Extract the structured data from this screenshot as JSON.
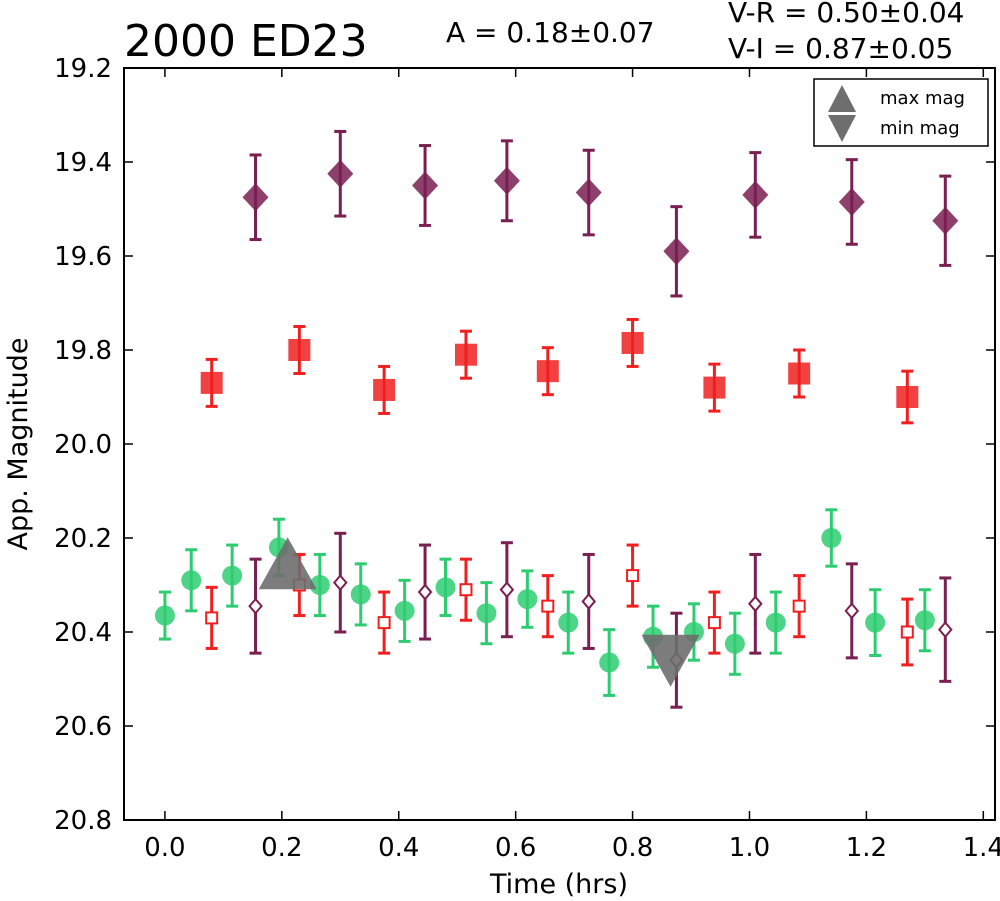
{
  "chart_data": {
    "type": "scatter",
    "title": "2000 ED23",
    "amplitude_label": "A  = 0.18±0.07",
    "color_labels": [
      "V-R = 0.50±0.04",
      "V-I  = 0.87±0.05"
    ],
    "xlabel": "Time (hrs)",
    "ylabel": "App. Magnitude",
    "xlim": [
      -0.07,
      1.42
    ],
    "ylim": [
      19.2,
      20.8
    ],
    "y_inverted": true,
    "x_ticks": [
      "0.0",
      "0.2",
      "0.4",
      "0.6",
      "0.8",
      "1.0",
      "1.2",
      "1.4"
    ],
    "y_ticks": [
      "19.2",
      "19.4",
      "19.6",
      "19.8",
      "20.0",
      "20.2",
      "20.4",
      "20.6",
      "20.8"
    ],
    "grid": false,
    "legend": {
      "placement": "top-right",
      "entries": [
        {
          "label": "max mag",
          "marker": "triangle-up"
        },
        {
          "label": "min mag",
          "marker": "triangle-down"
        }
      ]
    },
    "colors": {
      "V": "#2ecc71",
      "R": "#f02020",
      "I": "#7a1f52",
      "marker_gray": "#6e6e6e"
    },
    "series": [
      {
        "band": "V",
        "marker": "circle-filled",
        "x": [
          0.0,
          0.045,
          0.115,
          0.195,
          0.265,
          0.335,
          0.41,
          0.48,
          0.55,
          0.62,
          0.69,
          0.76,
          0.835,
          0.905,
          0.975,
          1.045,
          1.14,
          1.215,
          1.3
        ],
        "y": [
          20.365,
          20.29,
          20.28,
          20.22,
          20.3,
          20.32,
          20.355,
          20.305,
          20.36,
          20.33,
          20.38,
          20.465,
          20.41,
          20.4,
          20.425,
          20.38,
          20.2,
          20.38,
          20.375
        ],
        "err": [
          0.05,
          0.065,
          0.065,
          0.06,
          0.065,
          0.065,
          0.065,
          0.06,
          0.065,
          0.06,
          0.065,
          0.07,
          0.065,
          0.06,
          0.065,
          0.065,
          0.06,
          0.07,
          0.065
        ]
      },
      {
        "band": "R",
        "marker": "square-open",
        "x": [
          0.08,
          0.23,
          0.375,
          0.515,
          0.655,
          0.8,
          0.94,
          1.085,
          1.27
        ],
        "y": [
          20.37,
          20.3,
          20.38,
          20.31,
          20.345,
          20.28,
          20.38,
          20.345,
          20.4
        ],
        "err": [
          0.065,
          0.065,
          0.065,
          0.065,
          0.065,
          0.065,
          0.065,
          0.065,
          0.07
        ]
      },
      {
        "band": "I",
        "marker": "diamond-open",
        "x": [
          0.155,
          0.3,
          0.445,
          0.585,
          0.725,
          0.875,
          1.01,
          1.175,
          1.335
        ],
        "y": [
          20.345,
          20.295,
          20.315,
          20.31,
          20.335,
          20.46,
          20.34,
          20.355,
          20.395
        ],
        "err": [
          0.1,
          0.105,
          0.1,
          0.1,
          0.1,
          0.1,
          0.105,
          0.1,
          0.11
        ]
      },
      {
        "band": "R",
        "marker": "square-filled",
        "x": [
          0.08,
          0.23,
          0.375,
          0.515,
          0.655,
          0.8,
          0.94,
          1.085,
          1.27
        ],
        "y": [
          19.87,
          19.8,
          19.885,
          19.81,
          19.845,
          19.785,
          19.88,
          19.85,
          19.9
        ],
        "err": [
          0.05,
          0.05,
          0.05,
          0.05,
          0.05,
          0.05,
          0.05,
          0.05,
          0.055
        ]
      },
      {
        "band": "I",
        "marker": "diamond-filled",
        "x": [
          0.155,
          0.3,
          0.445,
          0.585,
          0.725,
          0.875,
          1.01,
          1.175,
          1.335
        ],
        "y": [
          19.475,
          19.425,
          19.45,
          19.44,
          19.465,
          19.59,
          19.47,
          19.485,
          19.525
        ],
        "err": [
          0.09,
          0.09,
          0.085,
          0.085,
          0.09,
          0.095,
          0.09,
          0.09,
          0.095
        ]
      }
    ],
    "extrema_markers": [
      {
        "kind": "max",
        "marker": "triangle-up",
        "x": 0.21,
        "y": 20.275
      },
      {
        "kind": "min",
        "marker": "triangle-down",
        "x": 0.865,
        "y": 20.44
      }
    ]
  }
}
